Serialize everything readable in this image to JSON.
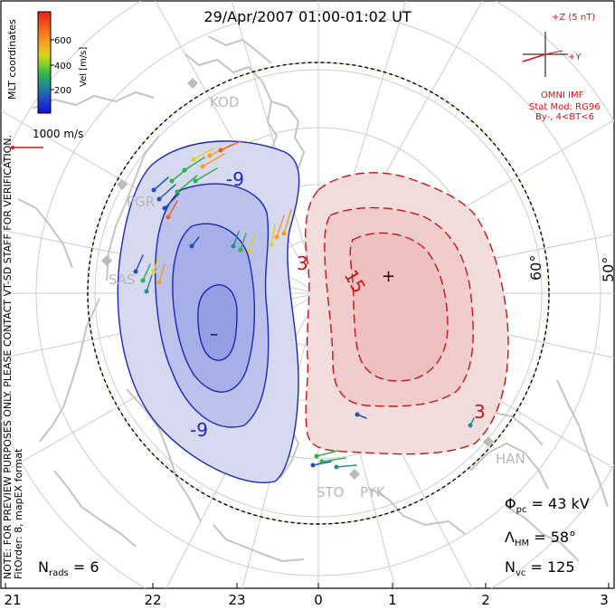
{
  "title": "29/Apr/2007 01:00-01:02 UT",
  "colorbar": {
    "label": "Vel [m/s]",
    "ticks": [
      "600",
      "400",
      "200"
    ],
    "colors": [
      "#e62020",
      "#f06018",
      "#f5a020",
      "#e0d020",
      "#80d030",
      "#30b050",
      "#209090",
      "#2050c0",
      "#1010e0"
    ]
  },
  "coords_label": "MLT coordinates",
  "scale_vector": {
    "label": "1000 m/s"
  },
  "imf": {
    "axis_z": "+Z (5 nT)",
    "axis_y": "+Y",
    "source": "OMNI IMF",
    "model": "Stat Mod: RG96",
    "condition": "By-, 4<BT<6"
  },
  "stations": [
    "KOD",
    "PGR",
    "SAS",
    "HAN",
    "STO",
    "PYK"
  ],
  "lat_labels": [
    "60°",
    "50°"
  ],
  "contours": {
    "negative_labels": [
      "-9",
      "-9"
    ],
    "positive_labels": [
      "3",
      "15",
      "3"
    ],
    "min_marker": "–",
    "max_marker": "+"
  },
  "stats": {
    "phi_pc_label": "Φ",
    "phi_pc_sub": "pc",
    "phi_pc_value": " = 43 kV",
    "lambda_hm_label": "Λ",
    "lambda_hm_sub": "HM",
    "lambda_hm_value": " = 58°",
    "n_vc_label": "N",
    "n_vc_sub": "vc",
    "n_vc_value": " = 125",
    "n_rads_label": "N",
    "n_rads_sub": "rads",
    "n_rads_value": " = 6"
  },
  "side_notes": {
    "preview": "NOTE: FOR PREVIEW PURPOSES ONLY. PLEASE CONTACT VT-SD STAFF FOR VERIFICATION.",
    "fit": "FitOrder: 8, mapEX format"
  },
  "mlt_axis": [
    "21",
    "22",
    "23",
    "0",
    "1",
    "2",
    "3"
  ]
}
